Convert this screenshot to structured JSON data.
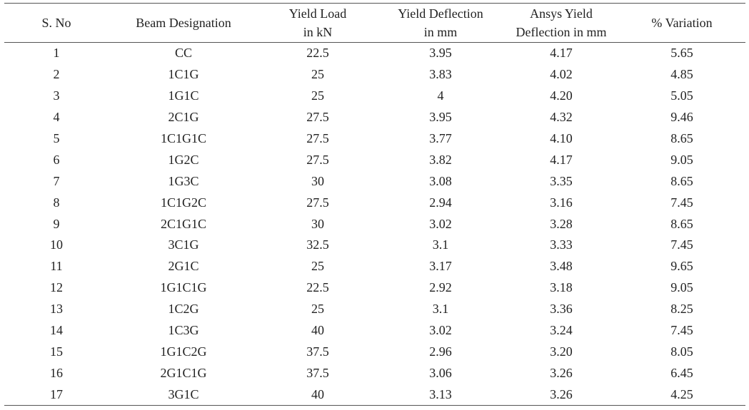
{
  "table": {
    "headers": [
      [
        "S. No"
      ],
      [
        "Beam Designation"
      ],
      [
        "Yield Load",
        "in kN"
      ],
      [
        "Yield Deflection",
        "in mm"
      ],
      [
        "Ansys Yield",
        "Deflection in mm"
      ],
      [
        "% Variation"
      ]
    ],
    "rows": [
      [
        "1",
        "CC",
        "22.5",
        "3.95",
        "4.17",
        "5.65"
      ],
      [
        "2",
        "1C1G",
        "25",
        "3.83",
        "4.02",
        "4.85"
      ],
      [
        "3",
        "1G1C",
        "25",
        "4",
        "4.20",
        "5.05"
      ],
      [
        "4",
        "2C1G",
        "27.5",
        "3.95",
        "4.32",
        "9.46"
      ],
      [
        "5",
        "1C1G1C",
        "27.5",
        "3.77",
        "4.10",
        "8.65"
      ],
      [
        "6",
        "1G2C",
        "27.5",
        "3.82",
        "4.17",
        "9.05"
      ],
      [
        "7",
        "1G3C",
        "30",
        "3.08",
        "3.35",
        "8.65"
      ],
      [
        "8",
        "1C1G2C",
        "27.5",
        "2.94",
        "3.16",
        "7.45"
      ],
      [
        "9",
        "2C1G1C",
        "30",
        "3.02",
        "3.28",
        "8.65"
      ],
      [
        "10",
        "3C1G",
        "32.5",
        "3.1",
        "3.33",
        "7.45"
      ],
      [
        "11",
        "2G1C",
        "25",
        "3.17",
        "3.48",
        "9.65"
      ],
      [
        "12",
        "1G1C1G",
        "22.5",
        "2.92",
        "3.18",
        "9.05"
      ],
      [
        "13",
        "1C2G",
        "25",
        "3.1",
        "3.36",
        "8.25"
      ],
      [
        "14",
        "1C3G",
        "40",
        "3.02",
        "3.24",
        "7.45"
      ],
      [
        "15",
        "1G1C2G",
        "37.5",
        "2.96",
        "3.20",
        "8.05"
      ],
      [
        "16",
        "2G1C1G",
        "37.5",
        "3.06",
        "3.26",
        "6.45"
      ],
      [
        "17",
        "3G1C",
        "40",
        "3.13",
        "3.26",
        "4.25"
      ]
    ]
  }
}
